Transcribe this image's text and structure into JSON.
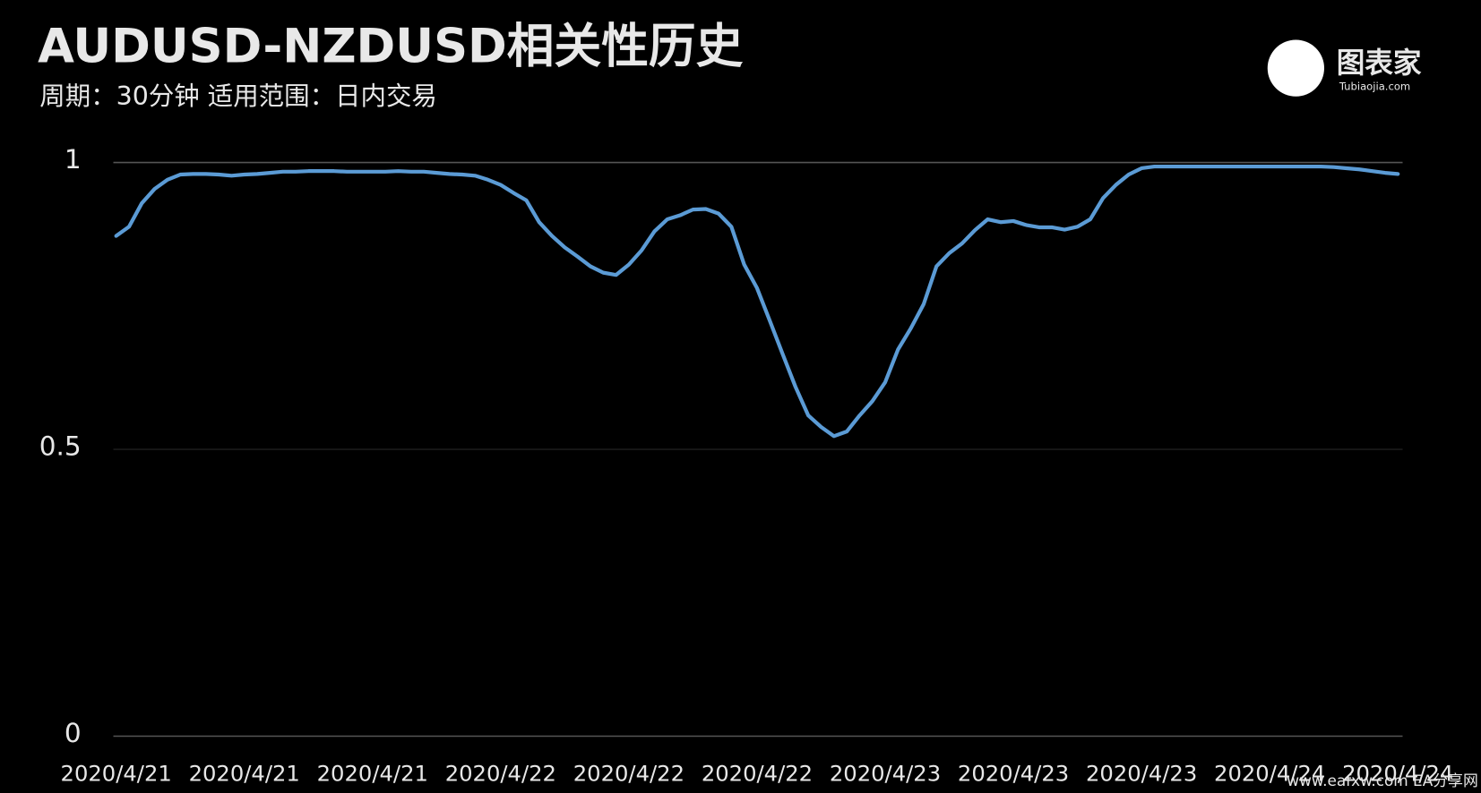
{
  "chart_data": {
    "type": "line",
    "title": "AUDUSD-NZDUSD相关性历史",
    "subtitle": "周期：30分钟  适用范围：日内交易",
    "logo": {
      "name": "图表家",
      "site": "Tubiaojia.com"
    },
    "watermark": "www.eafxw.com  EA分享网",
    "categories": [
      "2020/4/21",
      null,
      null,
      null,
      null,
      null,
      null,
      null,
      null,
      null,
      "2020/4/21",
      null,
      null,
      null,
      null,
      null,
      null,
      null,
      null,
      null,
      "2020/4/21",
      null,
      null,
      null,
      null,
      null,
      null,
      null,
      null,
      null,
      "2020/4/22",
      null,
      null,
      null,
      null,
      null,
      null,
      null,
      null,
      null,
      "2020/4/22",
      null,
      null,
      null,
      null,
      null,
      null,
      null,
      null,
      null,
      "2020/4/22",
      null,
      null,
      null,
      null,
      null,
      null,
      null,
      null,
      null,
      "2020/4/23",
      null,
      null,
      null,
      null,
      null,
      null,
      null,
      null,
      null,
      "2020/4/23",
      null,
      null,
      null,
      null,
      null,
      null,
      null,
      null,
      null,
      "2020/4/23",
      null,
      null,
      null,
      null,
      null,
      null,
      null,
      null,
      null,
      "2020/4/24",
      null,
      null,
      null,
      null,
      null,
      null,
      null,
      null,
      null,
      "2020/4/24"
    ],
    "series": [
      {
        "name": "AUDUSD-NZDUSD",
        "color": "#5b9bd5",
        "values": [
          0.872,
          0.888,
          0.929,
          0.954,
          0.97,
          0.979,
          0.98,
          0.98,
          0.979,
          0.977,
          0.979,
          0.98,
          0.982,
          0.984,
          0.984,
          0.985,
          0.985,
          0.985,
          0.984,
          0.984,
          0.984,
          0.984,
          0.985,
          0.984,
          0.984,
          0.982,
          0.98,
          0.979,
          0.977,
          0.97,
          0.961,
          0.947,
          0.934,
          0.896,
          0.872,
          0.852,
          0.836,
          0.819,
          0.808,
          0.804,
          0.822,
          0.847,
          0.88,
          0.901,
          0.908,
          0.918,
          0.919,
          0.911,
          0.888,
          0.822,
          0.781,
          0.724,
          0.666,
          0.609,
          0.559,
          0.539,
          0.523,
          0.531,
          0.559,
          0.584,
          0.617,
          0.674,
          0.711,
          0.753,
          0.819,
          0.842,
          0.859,
          0.882,
          0.901,
          0.896,
          0.898,
          0.891,
          0.887,
          0.887,
          0.883,
          0.888,
          0.901,
          0.938,
          0.961,
          0.979,
          0.99,
          0.993,
          0.993,
          0.993,
          0.993,
          0.993,
          0.993,
          0.993,
          0.993,
          0.993,
          0.993,
          0.993,
          0.993,
          0.993,
          0.993,
          0.992,
          0.99,
          0.988,
          0.985,
          0.982,
          0.98
        ]
      }
    ],
    "ylim": [
      0,
      1
    ],
    "yticks": [
      0,
      0.5,
      1
    ],
    "grid": true
  }
}
